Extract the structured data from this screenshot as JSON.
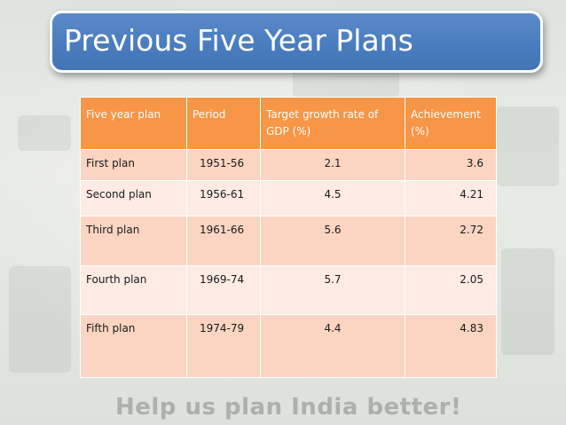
{
  "slide": {
    "title": "Previous Five Year Plans",
    "background_caption": "Help us plan India better!"
  },
  "table": {
    "headers": [
      "Five year plan",
      "Period",
      "Target growth rate of GDP (%)",
      "Achievement (%)"
    ],
    "rows": [
      {
        "plan": "First plan",
        "period": "1951-56",
        "target": "2.1",
        "achievement": "3.6"
      },
      {
        "plan": "Second plan",
        "period": "1956-61",
        "target": "4.5",
        "achievement": "4.21"
      },
      {
        "plan": "Third plan",
        "period": "1961-66",
        "target": "5.6",
        "achievement": "2.72"
      },
      {
        "plan": "Fourth plan",
        "period": "1969-74",
        "target": "5.7",
        "achievement": "2.05"
      },
      {
        "plan": "Fifth plan",
        "period": "1974-79",
        "target": "4.4",
        "achievement": "4.83"
      }
    ]
  },
  "colors": {
    "title_fill": "#4a7dbf",
    "header_fill": "#f79646",
    "row_odd": "#fbd5c2",
    "row_even": "#fdebe4"
  }
}
